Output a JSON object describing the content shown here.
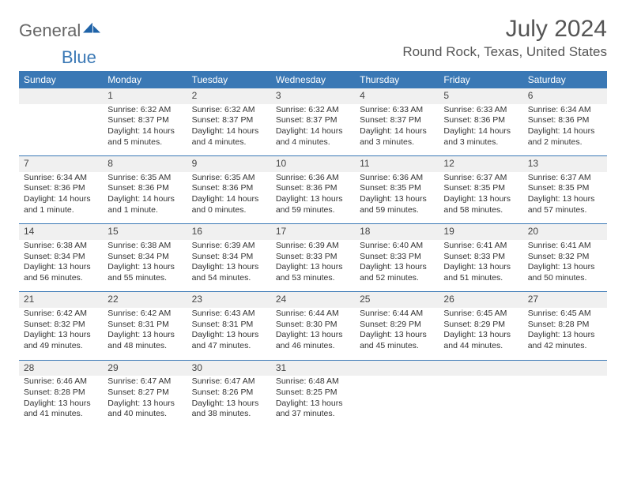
{
  "brand": {
    "word1": "General",
    "word2": "Blue"
  },
  "month_title": "July 2024",
  "location": "Round Rock, Texas, United States",
  "colors": {
    "header_bg": "#3a78b5",
    "header_text": "#ffffff",
    "daynum_bg": "#f0f0f0",
    "rule": "#3a78b5",
    "body_text": "#333333",
    "title_text": "#555555"
  },
  "weekdays": [
    "Sunday",
    "Monday",
    "Tuesday",
    "Wednesday",
    "Thursday",
    "Friday",
    "Saturday"
  ],
  "weeks": [
    [
      null,
      {
        "n": "1",
        "sunrise": "Sunrise: 6:32 AM",
        "sunset": "Sunset: 8:37 PM",
        "daylight": "Daylight: 14 hours and 5 minutes."
      },
      {
        "n": "2",
        "sunrise": "Sunrise: 6:32 AM",
        "sunset": "Sunset: 8:37 PM",
        "daylight": "Daylight: 14 hours and 4 minutes."
      },
      {
        "n": "3",
        "sunrise": "Sunrise: 6:32 AM",
        "sunset": "Sunset: 8:37 PM",
        "daylight": "Daylight: 14 hours and 4 minutes."
      },
      {
        "n": "4",
        "sunrise": "Sunrise: 6:33 AM",
        "sunset": "Sunset: 8:37 PM",
        "daylight": "Daylight: 14 hours and 3 minutes."
      },
      {
        "n": "5",
        "sunrise": "Sunrise: 6:33 AM",
        "sunset": "Sunset: 8:36 PM",
        "daylight": "Daylight: 14 hours and 3 minutes."
      },
      {
        "n": "6",
        "sunrise": "Sunrise: 6:34 AM",
        "sunset": "Sunset: 8:36 PM",
        "daylight": "Daylight: 14 hours and 2 minutes."
      }
    ],
    [
      {
        "n": "7",
        "sunrise": "Sunrise: 6:34 AM",
        "sunset": "Sunset: 8:36 PM",
        "daylight": "Daylight: 14 hours and 1 minute."
      },
      {
        "n": "8",
        "sunrise": "Sunrise: 6:35 AM",
        "sunset": "Sunset: 8:36 PM",
        "daylight": "Daylight: 14 hours and 1 minute."
      },
      {
        "n": "9",
        "sunrise": "Sunrise: 6:35 AM",
        "sunset": "Sunset: 8:36 PM",
        "daylight": "Daylight: 14 hours and 0 minutes."
      },
      {
        "n": "10",
        "sunrise": "Sunrise: 6:36 AM",
        "sunset": "Sunset: 8:36 PM",
        "daylight": "Daylight: 13 hours and 59 minutes."
      },
      {
        "n": "11",
        "sunrise": "Sunrise: 6:36 AM",
        "sunset": "Sunset: 8:35 PM",
        "daylight": "Daylight: 13 hours and 59 minutes."
      },
      {
        "n": "12",
        "sunrise": "Sunrise: 6:37 AM",
        "sunset": "Sunset: 8:35 PM",
        "daylight": "Daylight: 13 hours and 58 minutes."
      },
      {
        "n": "13",
        "sunrise": "Sunrise: 6:37 AM",
        "sunset": "Sunset: 8:35 PM",
        "daylight": "Daylight: 13 hours and 57 minutes."
      }
    ],
    [
      {
        "n": "14",
        "sunrise": "Sunrise: 6:38 AM",
        "sunset": "Sunset: 8:34 PM",
        "daylight": "Daylight: 13 hours and 56 minutes."
      },
      {
        "n": "15",
        "sunrise": "Sunrise: 6:38 AM",
        "sunset": "Sunset: 8:34 PM",
        "daylight": "Daylight: 13 hours and 55 minutes."
      },
      {
        "n": "16",
        "sunrise": "Sunrise: 6:39 AM",
        "sunset": "Sunset: 8:34 PM",
        "daylight": "Daylight: 13 hours and 54 minutes."
      },
      {
        "n": "17",
        "sunrise": "Sunrise: 6:39 AM",
        "sunset": "Sunset: 8:33 PM",
        "daylight": "Daylight: 13 hours and 53 minutes."
      },
      {
        "n": "18",
        "sunrise": "Sunrise: 6:40 AM",
        "sunset": "Sunset: 8:33 PM",
        "daylight": "Daylight: 13 hours and 52 minutes."
      },
      {
        "n": "19",
        "sunrise": "Sunrise: 6:41 AM",
        "sunset": "Sunset: 8:33 PM",
        "daylight": "Daylight: 13 hours and 51 minutes."
      },
      {
        "n": "20",
        "sunrise": "Sunrise: 6:41 AM",
        "sunset": "Sunset: 8:32 PM",
        "daylight": "Daylight: 13 hours and 50 minutes."
      }
    ],
    [
      {
        "n": "21",
        "sunrise": "Sunrise: 6:42 AM",
        "sunset": "Sunset: 8:32 PM",
        "daylight": "Daylight: 13 hours and 49 minutes."
      },
      {
        "n": "22",
        "sunrise": "Sunrise: 6:42 AM",
        "sunset": "Sunset: 8:31 PM",
        "daylight": "Daylight: 13 hours and 48 minutes."
      },
      {
        "n": "23",
        "sunrise": "Sunrise: 6:43 AM",
        "sunset": "Sunset: 8:31 PM",
        "daylight": "Daylight: 13 hours and 47 minutes."
      },
      {
        "n": "24",
        "sunrise": "Sunrise: 6:44 AM",
        "sunset": "Sunset: 8:30 PM",
        "daylight": "Daylight: 13 hours and 46 minutes."
      },
      {
        "n": "25",
        "sunrise": "Sunrise: 6:44 AM",
        "sunset": "Sunset: 8:29 PM",
        "daylight": "Daylight: 13 hours and 45 minutes."
      },
      {
        "n": "26",
        "sunrise": "Sunrise: 6:45 AM",
        "sunset": "Sunset: 8:29 PM",
        "daylight": "Daylight: 13 hours and 44 minutes."
      },
      {
        "n": "27",
        "sunrise": "Sunrise: 6:45 AM",
        "sunset": "Sunset: 8:28 PM",
        "daylight": "Daylight: 13 hours and 42 minutes."
      }
    ],
    [
      {
        "n": "28",
        "sunrise": "Sunrise: 6:46 AM",
        "sunset": "Sunset: 8:28 PM",
        "daylight": "Daylight: 13 hours and 41 minutes."
      },
      {
        "n": "29",
        "sunrise": "Sunrise: 6:47 AM",
        "sunset": "Sunset: 8:27 PM",
        "daylight": "Daylight: 13 hours and 40 minutes."
      },
      {
        "n": "30",
        "sunrise": "Sunrise: 6:47 AM",
        "sunset": "Sunset: 8:26 PM",
        "daylight": "Daylight: 13 hours and 38 minutes."
      },
      {
        "n": "31",
        "sunrise": "Sunrise: 6:48 AM",
        "sunset": "Sunset: 8:25 PM",
        "daylight": "Daylight: 13 hours and 37 minutes."
      },
      null,
      null,
      null
    ]
  ]
}
